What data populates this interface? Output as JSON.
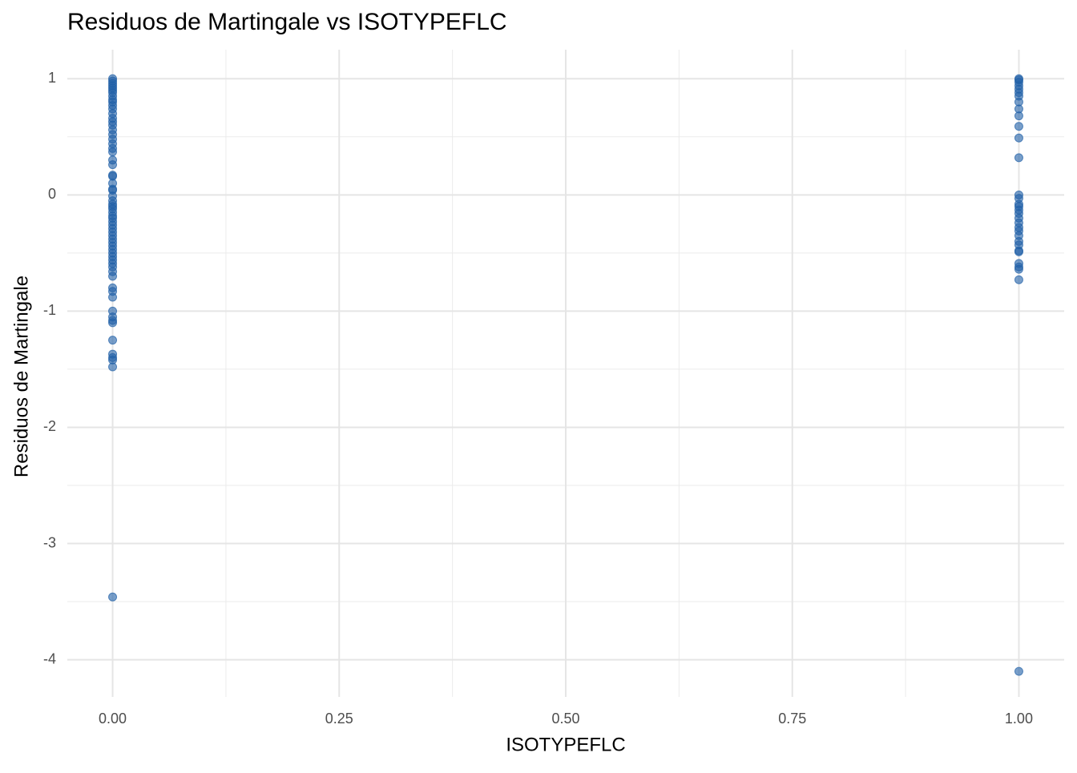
{
  "chart_data": {
    "type": "scatter",
    "title": "Residuos de Martingale vs ISOTYPEFLC",
    "x_label": "ISOTYPEFLC",
    "y_label": "Residuos de Martingale",
    "color": "#1f5fa6",
    "grid": true,
    "xlim": [
      -0.05,
      1.05
    ],
    "ylim": [
      -4.32,
      1.25
    ],
    "xticks": [
      {
        "value": 0,
        "label": "0.00"
      },
      {
        "value": 0.25,
        "label": "0.25"
      },
      {
        "value": 0.5,
        "label": "0.50"
      },
      {
        "value": 0.75,
        "label": "0.75"
      },
      {
        "value": 1,
        "label": "1.00"
      }
    ],
    "yticks": [
      1,
      0,
      -1,
      -2,
      -3,
      -4
    ],
    "x_minor_ticks": [
      0.125,
      0.375,
      0.625,
      0.875
    ],
    "y_minor_ticks": [
      0.5,
      -0.5,
      -1.5,
      -2.5,
      -3.5
    ],
    "x": [
      0,
      0,
      0,
      0,
      0,
      0,
      0,
      0,
      0,
      0,
      0,
      0,
      0,
      0,
      0,
      0,
      0,
      0,
      0,
      0,
      0,
      0,
      0,
      0,
      0,
      0,
      0,
      0,
      0,
      0,
      0,
      0,
      0,
      0,
      0,
      0,
      0,
      0,
      0,
      0,
      0,
      0,
      0,
      0,
      0,
      0,
      0,
      0,
      0,
      0,
      0,
      0,
      0,
      0,
      0,
      0,
      0,
      0,
      0,
      0,
      0,
      0,
      0,
      0,
      0,
      0,
      1,
      1,
      1,
      1,
      1,
      1,
      1,
      1,
      1,
      1,
      1,
      1,
      1,
      1,
      1,
      1,
      1,
      1,
      1,
      1,
      1,
      1,
      1,
      1,
      1,
      1,
      1,
      1,
      1,
      1,
      1,
      1,
      1
    ],
    "values": [
      1.0,
      0.98,
      0.96,
      0.94,
      0.92,
      0.9,
      0.88,
      0.85,
      0.82,
      0.8,
      0.77,
      0.74,
      0.7,
      0.66,
      0.63,
      0.6,
      0.56,
      0.52,
      0.48,
      0.44,
      0.4,
      0.37,
      0.3,
      0.26,
      0.17,
      0.16,
      0.1,
      0.05,
      0.04,
      -0.01,
      -0.05,
      -0.08,
      -0.1,
      -0.12,
      -0.15,
      -0.18,
      -0.2,
      -0.23,
      -0.26,
      -0.29,
      -0.32,
      -0.35,
      -0.38,
      -0.41,
      -0.44,
      -0.47,
      -0.5,
      -0.53,
      -0.56,
      -0.59,
      -0.62,
      -0.66,
      -0.7,
      -0.8,
      -0.83,
      -0.88,
      -1.0,
      -1.05,
      -1.08,
      -1.1,
      -1.25,
      -1.37,
      -1.4,
      -1.42,
      -1.48,
      -3.46,
      1.0,
      0.99,
      0.97,
      0.94,
      0.91,
      0.88,
      0.85,
      0.8,
      0.74,
      0.68,
      0.59,
      0.49,
      0.32,
      0.0,
      -0.03,
      -0.08,
      -0.1,
      -0.13,
      -0.16,
      -0.2,
      -0.24,
      -0.28,
      -0.31,
      -0.35,
      -0.4,
      -0.43,
      -0.48,
      -0.49,
      -0.59,
      -0.62,
      -0.64,
      -0.73,
      -4.1
    ]
  }
}
